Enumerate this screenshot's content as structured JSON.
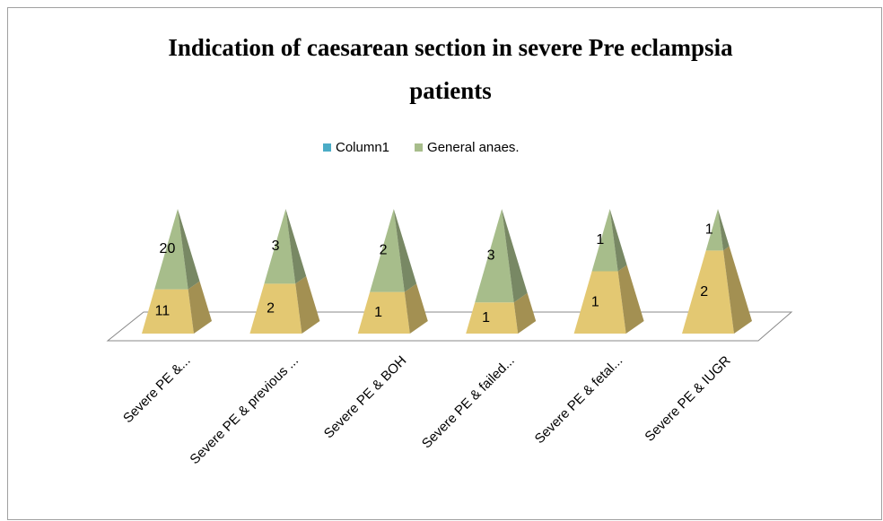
{
  "chart_data": {
    "type": "pyramid",
    "title": [
      "Indication of caesarean section in severe Pre eclampsia",
      "patients"
    ],
    "categories": [
      "Severe PE &...",
      "Severe PE & previous ...",
      "Severe PE & BOH",
      "Severe PE & failed...",
      "Severe PE & fetal...",
      "Severe PE & IUGR"
    ],
    "stacking": "percent",
    "series": [
      {
        "color": "#e3c872",
        "values": [
          11,
          2,
          1,
          1,
          1,
          2
        ]
      },
      {
        "name": "Column1",
        "color": "#4bacc6",
        "values": [
          null,
          null,
          null,
          null,
          null,
          null
        ]
      },
      {
        "name": "General anaes.",
        "color": "#a7bd8b",
        "values": [
          20,
          3,
          2,
          3,
          1,
          1
        ]
      }
    ],
    "legend": "top"
  }
}
